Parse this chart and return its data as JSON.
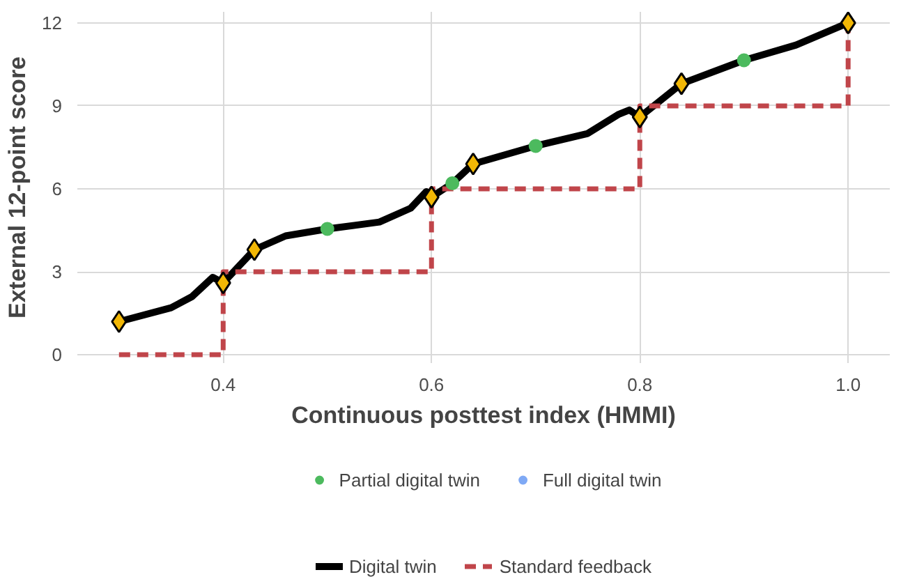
{
  "chart_data": {
    "type": "line",
    "xlabel": "Continuous posttest index (HMMI)",
    "ylabel": "External 12-point score",
    "xlim": [
      0.26,
      1.04
    ],
    "ylim": [
      -0.3,
      12.4
    ],
    "xticks": [
      {
        "value": 0.4,
        "label": "0.4"
      },
      {
        "value": 0.6,
        "label": "0.6"
      },
      {
        "value": 0.8,
        "label": "0.8"
      },
      {
        "value": 1.0,
        "label": "1.0"
      }
    ],
    "yticks": [
      0,
      3,
      6,
      9,
      12
    ],
    "grid": true,
    "legend": "bottom",
    "series": [
      {
        "name": "Digital twin",
        "color": "#000000",
        "line_style": "solid",
        "x": [
          0.3,
          0.35,
          0.37,
          0.39,
          0.4,
          0.43,
          0.46,
          0.5,
          0.55,
          0.58,
          0.595,
          0.6,
          0.62,
          0.64,
          0.7,
          0.75,
          0.78,
          0.79,
          0.8,
          0.84,
          0.9,
          0.95,
          1.0
        ],
        "values": [
          1.2,
          1.7,
          2.1,
          2.8,
          2.6,
          3.8,
          4.3,
          4.55,
          4.8,
          5.3,
          5.9,
          5.7,
          6.2,
          6.9,
          7.55,
          8.0,
          8.7,
          8.85,
          8.6,
          9.8,
          10.65,
          11.2,
          12
        ]
      },
      {
        "name": "Standard feedback",
        "type": "step",
        "color": "#c0454a",
        "line_style": "dashed",
        "x": [
          0.3,
          0.4,
          0.6,
          0.8,
          1.0,
          1.0
        ],
        "values": [
          0,
          3,
          6,
          9,
          9,
          12
        ]
      },
      {
        "type": "scatter",
        "color": "#f2b705",
        "marker": "diamond",
        "x": [
          0.3,
          0.4,
          0.43,
          0.6,
          0.64,
          0.8,
          0.84,
          1.0
        ],
        "values": [
          1.2,
          2.6,
          3.8,
          5.7,
          6.9,
          8.6,
          9.8,
          12
        ]
      },
      {
        "name": "Partial digital twin",
        "type": "scatter",
        "color": "#4cba5e",
        "marker": "circle",
        "x": [
          0.5,
          0.62,
          0.7,
          0.9
        ],
        "values": [
          4.55,
          6.2,
          7.55,
          10.65
        ]
      },
      {
        "name": "Full digital twin",
        "type": "scatter",
        "color": "#7fa9f5",
        "marker": "circle"
      }
    ]
  }
}
